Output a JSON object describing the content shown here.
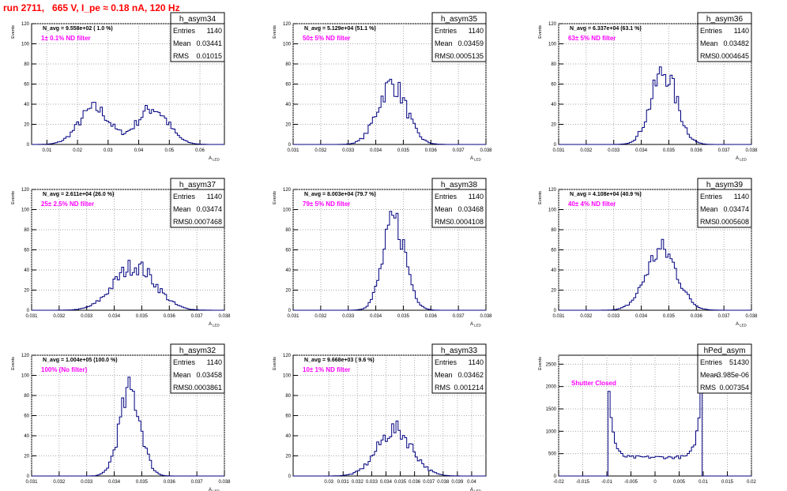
{
  "header": {
    "title": "run 2711,   665 V, I_pe ≈ 0.18 nA, 120 Hz"
  },
  "colors": {
    "histogram": "#000080",
    "annotation": "#ff00ff",
    "title": "#ff0000",
    "grid": "#aaaaaa"
  },
  "chart_data": [
    {
      "type": "histogram",
      "name": "h_asym34",
      "stats": {
        "entries_label": "Entries",
        "entries": "1140",
        "mean_label": "Mean",
        "mean": "0.03441",
        "rms_label": "RMS",
        "rms": "0.01015"
      },
      "navg": "N_avg = 9.558e+02 ( 1.0 %)",
      "filter_label": "1± 0.1% ND filter",
      "ylabel": "Events",
      "xlabel": "A_LED",
      "xlim": [
        0.005,
        0.068
      ],
      "ylim": [
        0,
        120
      ],
      "xticks": [
        "0.01",
        "0.02",
        "0.03",
        "0.04",
        "0.05",
        "0.06"
      ],
      "xtick_values": [
        0.01,
        0.02,
        0.03,
        0.04,
        0.05,
        0.06
      ],
      "yticks": [
        0,
        20,
        40,
        60,
        80,
        100,
        120
      ],
      "shape": {
        "peaks": [
          [
            0.0255,
            0.005,
            36
          ],
          [
            0.0445,
            0.005,
            36
          ]
        ]
      }
    },
    {
      "type": "histogram",
      "name": "h_asym35",
      "stats": {
        "entries_label": "Entries",
        "entries": "1140",
        "mean_label": "Mean",
        "mean": "0.03459",
        "rms_label": "RMS",
        "rms": "0.0005135"
      },
      "navg": "N_avg = 5.129e+04 (51.1 %)",
      "filter_label": "50± 5% ND filter",
      "ylabel": "Events",
      "xlabel": "A_LED",
      "xlim": [
        0.031,
        0.038
      ],
      "ylim": [
        0,
        120
      ],
      "xticks": [
        "0.031",
        "0.032",
        "0.033",
        "0.034",
        "0.035",
        "0.036",
        "0.037",
        "0.038"
      ],
      "xtick_values": [
        0.031,
        0.032,
        0.033,
        0.034,
        0.035,
        0.036,
        0.037,
        0.038
      ],
      "yticks": [
        0,
        20,
        40,
        60,
        80,
        100,
        120
      ],
      "shape": {
        "peaks": [
          [
            0.03459,
            0.000513,
            60
          ]
        ]
      }
    },
    {
      "type": "histogram",
      "name": "h_asym36",
      "stats": {
        "entries_label": "Entries",
        "entries": "1140",
        "mean_label": "Mean",
        "mean": "0.03482",
        "rms_label": "RMS",
        "rms": "0.0004645"
      },
      "navg": "N_avg = 6.337e+04 (63.1 %)",
      "filter_label": "63± 5% ND filter",
      "ylabel": "Events",
      "xlabel": "A_LED",
      "xlim": [
        0.031,
        0.038
      ],
      "ylim": [
        0,
        120
      ],
      "xticks": [
        "0.031",
        "0.032",
        "0.033",
        "0.034",
        "0.035",
        "0.036",
        "0.037",
        "0.038"
      ],
      "xtick_values": [
        0.031,
        0.032,
        0.033,
        0.034,
        0.035,
        0.036,
        0.037,
        0.038
      ],
      "yticks": [
        0,
        20,
        40,
        60,
        80,
        100,
        120
      ],
      "shape": {
        "peaks": [
          [
            0.03482,
            0.000465,
            72
          ]
        ]
      }
    },
    {
      "type": "histogram",
      "name": "h_asym37",
      "stats": {
        "entries_label": "Entries",
        "entries": "1140",
        "mean_label": "Mean",
        "mean": "0.03474",
        "rms_label": "RMS",
        "rms": "0.0007468"
      },
      "navg": "N_avg = 2.611e+04 (26.0 %)",
      "filter_label": "25± 2.5% ND filter",
      "ylabel": "Events",
      "xlabel": "A_LED",
      "xlim": [
        0.031,
        0.038
      ],
      "ylim": [
        0,
        120
      ],
      "xticks": [
        "0.031",
        "0.032",
        "0.033",
        "0.034",
        "0.035",
        "0.036",
        "0.037",
        "0.038"
      ],
      "xtick_values": [
        0.031,
        0.032,
        0.033,
        0.034,
        0.035,
        0.036,
        0.037,
        0.038
      ],
      "yticks": [
        0,
        20,
        40,
        60,
        80,
        100,
        120
      ],
      "shape": {
        "peaks": [
          [
            0.03474,
            0.000747,
            44
          ]
        ]
      }
    },
    {
      "type": "histogram",
      "name": "h_asym38",
      "stats": {
        "entries_label": "Entries",
        "entries": "1140",
        "mean_label": "Mean",
        "mean": "0.03468",
        "rms_label": "RMS",
        "rms": "0.0004108"
      },
      "navg": "N_avg = 8.003e+04 (79.7 %)",
      "filter_label": "79± 5% ND filter",
      "ylabel": "Events",
      "xlabel": "A_LED",
      "xlim": [
        0.031,
        0.038
      ],
      "ylim": [
        0,
        120
      ],
      "xticks": [
        "0.031",
        "0.032",
        "0.033",
        "0.034",
        "0.035",
        "0.036",
        "0.037",
        "0.038"
      ],
      "xtick_values": [
        0.031,
        0.032,
        0.033,
        0.034,
        0.035,
        0.036,
        0.037,
        0.038
      ],
      "yticks": [
        0,
        20,
        40,
        60,
        80,
        100,
        120
      ],
      "shape": {
        "peaks": [
          [
            0.03468,
            0.000411,
            88
          ]
        ]
      }
    },
    {
      "type": "histogram",
      "name": "h_asym39",
      "stats": {
        "entries_label": "Entries",
        "entries": "1140",
        "mean_label": "Mean",
        "mean": "0.03474",
        "rms_label": "RMS",
        "rms": "0.0005608"
      },
      "navg": "N_avg = 4.108e+04 (40.9 %)",
      "filter_label": "40± 4% ND filter",
      "ylabel": "Events",
      "xlabel": "A_LED",
      "xlim": [
        0.031,
        0.038
      ],
      "ylim": [
        0,
        120
      ],
      "xticks": [
        "0.031",
        "0.032",
        "0.033",
        "0.034",
        "0.035",
        "0.036",
        "0.037",
        "0.038"
      ],
      "xtick_values": [
        0.031,
        0.032,
        0.033,
        0.034,
        0.035,
        0.036,
        0.037,
        0.038
      ],
      "yticks": [
        0,
        20,
        40,
        60,
        80,
        100,
        120
      ],
      "shape": {
        "peaks": [
          [
            0.03474,
            0.000561,
            60
          ]
        ]
      }
    },
    {
      "type": "histogram",
      "name": "h_asym32",
      "stats": {
        "entries_label": "Entries",
        "entries": "1140",
        "mean_label": "Mean",
        "mean": "0.03458",
        "rms_label": "RMS",
        "rms": "0.0003861"
      },
      "navg": "N_avg = 1.004e+05 (100.0 %)",
      "filter_label": "100% (No filter)",
      "ylabel": "Events",
      "xlabel": "A_LED",
      "xlim": [
        0.031,
        0.038
      ],
      "ylim": [
        0,
        120
      ],
      "xticks": [
        "0.031",
        "0.032",
        "0.033",
        "0.034",
        "0.035",
        "0.036",
        "0.037",
        "0.038"
      ],
      "xtick_values": [
        0.031,
        0.032,
        0.033,
        0.034,
        0.035,
        0.036,
        0.037,
        0.038
      ],
      "yticks": [
        0,
        20,
        40,
        60,
        80,
        100,
        120
      ],
      "shape": {
        "peaks": [
          [
            0.03458,
            0.000386,
            84
          ]
        ]
      }
    },
    {
      "type": "histogram",
      "name": "h_asym33",
      "stats": {
        "entries_label": "Entries",
        "entries": "1140",
        "mean_label": "Mean",
        "mean": "0.03462",
        "rms_label": "RMS",
        "rms": "0.001214"
      },
      "navg": "N_avg = 9.668e+03 ( 9.6 %)",
      "filter_label": "10± 1% ND filter",
      "ylabel": "Events",
      "xlabel": "A_LED",
      "xlim": [
        0.0275,
        0.041
      ],
      "ylim": [
        0,
        120
      ],
      "xticks": [
        "0.03",
        "0.031",
        "0.032",
        "0.033",
        "0.034",
        "0.035",
        "0.036",
        "0.037",
        "0.038",
        "0.039",
        "0.04"
      ],
      "xtick_values": [
        0.03,
        0.031,
        0.032,
        0.033,
        0.034,
        0.035,
        0.036,
        0.037,
        0.038,
        0.039,
        0.04
      ],
      "yticks": [
        0,
        20,
        40,
        60,
        80,
        100,
        120
      ],
      "shape": {
        "peaks": [
          [
            0.03462,
            0.001214,
            46
          ]
        ]
      }
    },
    {
      "type": "histogram",
      "name": "hPed_asym",
      "stats": {
        "entries_label": "Entries",
        "entries": "51430",
        "mean_label": "Mean",
        "mean": "-3.985e-06",
        "rms_label": "RMS",
        "rms": "0.007354"
      },
      "navg": "",
      "filter_label": "Shutter Closed",
      "ylabel": "Events",
      "xlabel": "",
      "xlim": [
        -0.02,
        0.02
      ],
      "ylim": [
        0,
        2700
      ],
      "xticks": [
        "-0.02",
        "-0.015",
        "-0.01",
        "-0.005",
        "0",
        "0.005",
        "0.01",
        "0.015",
        "0.02"
      ],
      "xtick_values": [
        -0.02,
        -0.015,
        -0.01,
        -0.005,
        0,
        0.005,
        0.01,
        0.015,
        0.02
      ],
      "yticks": [
        0,
        500,
        1000,
        1500,
        2000,
        2500
      ],
      "shape": {
        "bathtub": {
          "edge_low": -0.0099,
          "edge_high": 0.0099,
          "floor": 420,
          "wall_low": 2500,
          "wall_high": 2450
        }
      }
    }
  ]
}
